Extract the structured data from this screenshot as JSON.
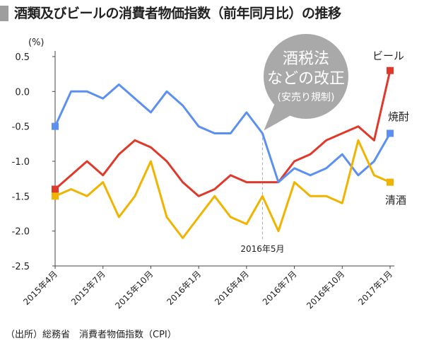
{
  "title": "酒類及びビールの消費者物価指数（前年同月比）の推移",
  "source": "（出所）総務省　消費者物価指数（CPI）",
  "chart_data": {
    "type": "line",
    "ylabel": "(%)",
    "ylim": [
      -2.5,
      0.5
    ],
    "yticks": [
      "0.5",
      "0.0",
      "-0.5",
      "-1.0",
      "-1.5",
      "-2.0",
      "-2.5"
    ],
    "x_tick_labels": [
      "2015年4月",
      "2015年7月",
      "2015年10月",
      "2016年1月",
      "2016年4月",
      "2016年7月",
      "2016年10月",
      "2017年1月"
    ],
    "x": [
      "2015-04",
      "2015-05",
      "2015-06",
      "2015-07",
      "2015-08",
      "2015-09",
      "2015-10",
      "2015-11",
      "2015-12",
      "2016-01",
      "2016-02",
      "2016-03",
      "2016-04",
      "2016-05",
      "2016-06",
      "2016-07",
      "2016-08",
      "2016-09",
      "2016-10",
      "2016-11",
      "2016-12",
      "2017-01"
    ],
    "series": [
      {
        "name": "ビール",
        "color": "#e0392b",
        "values": [
          -1.4,
          -1.2,
          -1.0,
          -1.2,
          -0.9,
          -0.7,
          -0.8,
          -1.0,
          -1.3,
          -1.5,
          -1.4,
          -1.2,
          -1.3,
          -1.3,
          -1.3,
          -1.0,
          -0.9,
          -0.7,
          -0.6,
          -0.5,
          -0.7,
          0.3
        ]
      },
      {
        "name": "焼酎",
        "color": "#5b8ff2",
        "values": [
          -0.5,
          0.0,
          0.0,
          -0.1,
          0.1,
          -0.1,
          -0.3,
          0.0,
          -0.2,
          -0.5,
          -0.6,
          -0.6,
          -0.3,
          -0.6,
          -1.3,
          -1.1,
          -1.2,
          -1.1,
          -0.9,
          -1.2,
          -1.0,
          -0.6
        ]
      },
      {
        "name": "清酒",
        "color": "#f0b400",
        "values": [
          -1.5,
          -1.4,
          -1.5,
          -1.3,
          -1.8,
          -1.5,
          -1.0,
          -1.8,
          -2.1,
          -1.8,
          -1.5,
          -1.8,
          -1.9,
          -1.5,
          -2.0,
          -1.3,
          -1.5,
          -1.5,
          -1.6,
          -0.7,
          -1.2,
          -1.3
        ]
      }
    ],
    "annotation": {
      "x": "2016-05",
      "label": "2016年5月",
      "callout_line1": "酒税法",
      "callout_line2": "などの改正",
      "callout_line3": "(安売り規制)"
    },
    "grid": false,
    "legend": "inline-right"
  }
}
